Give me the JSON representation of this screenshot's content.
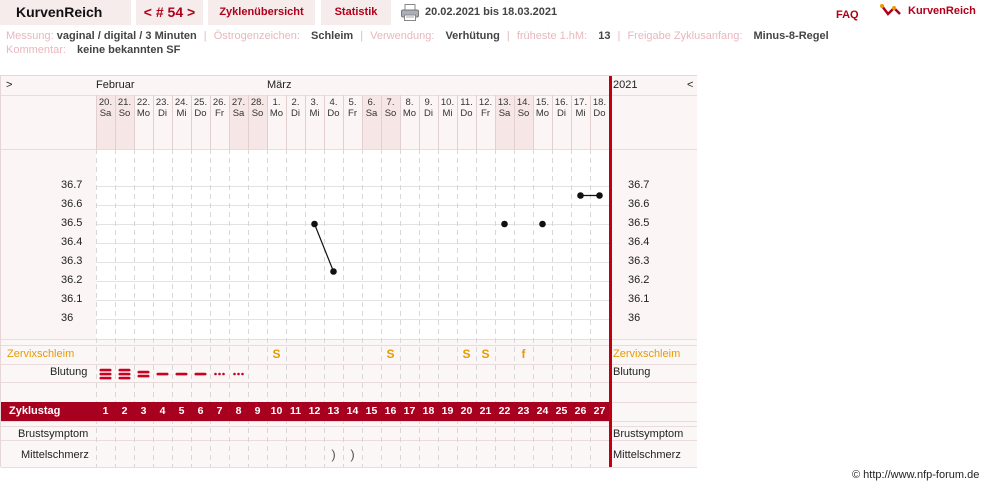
{
  "header": {
    "brand": "KurvenReich",
    "cycle_prev": "<",
    "cycle_label": "# 54",
    "cycle_next": ">",
    "tabs": [
      "Zyklenübersicht",
      "Statistik"
    ],
    "date_range": "20.02.2021 bis 18.03.2021",
    "faq": "FAQ",
    "logo_text": "KurvenReich"
  },
  "meta": {
    "line1": [
      {
        "key": "Messung:",
        "value": "vaginal / digital / 3 Minuten"
      },
      {
        "key": "Östrogenzeichen:",
        "value": "Schleim"
      },
      {
        "key": "Verwendung:",
        "value": "Verhütung"
      },
      {
        "key": "früheste 1.hM:",
        "value": "13"
      },
      {
        "key": "Freigabe Zyklusanfang:",
        "value": "Minus-8-Regel"
      }
    ],
    "line2": {
      "key": "Kommentar:",
      "value": "keine bekannten SF"
    }
  },
  "chart": {
    "nav_left": ">",
    "nav_right": "<",
    "month_feb": "Februar",
    "month_mar": "März",
    "year": "2021",
    "dates": [
      "20.",
      "21.",
      "22.",
      "23.",
      "24.",
      "25.",
      "26.",
      "27.",
      "28.",
      "1.",
      "2.",
      "3.",
      "4.",
      "5.",
      "6.",
      "7.",
      "8.",
      "9.",
      "10.",
      "11.",
      "12.",
      "13.",
      "14.",
      "15.",
      "16.",
      "17.",
      "18."
    ],
    "weekdays": [
      "Sa",
      "So",
      "Mo",
      "Di",
      "Mi",
      "Do",
      "Fr",
      "Sa",
      "So",
      "Mo",
      "Di",
      "Mi",
      "Do",
      "Fr",
      "Sa",
      "So",
      "Mo",
      "Di",
      "Mi",
      "Do",
      "Fr",
      "Sa",
      "So",
      "Mo",
      "Di",
      "Mi",
      "Do"
    ],
    "cycle_days": [
      "1",
      "2",
      "3",
      "4",
      "5",
      "6",
      "7",
      "8",
      "9",
      "10",
      "11",
      "12",
      "13",
      "14",
      "15",
      "16",
      "17",
      "18",
      "19",
      "20",
      "21",
      "22",
      "23",
      "24",
      "25",
      "26",
      "27"
    ],
    "temp_ticks": [
      "36.7",
      "36.6",
      "36.5",
      "36.4",
      "36.3",
      "36.2",
      "36.1",
      "36"
    ],
    "labels": {
      "mucus": "Zervixschleim",
      "bleeding": "Blutung",
      "cycle_day": "Zyklustag",
      "breast": "Brustsymptom",
      "midpain": "Mittelschmerz"
    },
    "copyright": "© http://www.nfp-forum.de"
  },
  "chart_data": {
    "type": "line",
    "title": "",
    "xlabel": "Zyklustag",
    "ylabel": "",
    "ylim": [
      36.0,
      36.7
    ],
    "x": [
      1,
      2,
      3,
      4,
      5,
      6,
      7,
      8,
      9,
      10,
      11,
      12,
      13,
      14,
      15,
      16,
      17,
      18,
      19,
      20,
      21,
      22,
      23,
      24,
      25,
      26,
      27
    ],
    "temperature": [
      {
        "day": 12,
        "value": 36.5
      },
      {
        "day": 13,
        "value": 36.25
      },
      {
        "day": 22,
        "value": 36.5
      },
      {
        "day": 24,
        "value": 36.5
      },
      {
        "day": 26,
        "value": 36.65
      },
      {
        "day": 27,
        "value": 36.65
      }
    ],
    "connected_segments": [
      [
        12,
        13
      ],
      [
        26,
        27
      ]
    ],
    "bleeding": [
      {
        "day": 1,
        "level": "stark"
      },
      {
        "day": 2,
        "level": "stark"
      },
      {
        "day": 3,
        "level": "mittel"
      },
      {
        "day": 4,
        "level": "schwach"
      },
      {
        "day": 5,
        "level": "schwach"
      },
      {
        "day": 6,
        "level": "schwach"
      },
      {
        "day": 7,
        "level": "schmier"
      },
      {
        "day": 8,
        "level": "schmier"
      }
    ],
    "mucus": [
      {
        "day": 10,
        "symbol": "S"
      },
      {
        "day": 16,
        "symbol": "S"
      },
      {
        "day": 20,
        "symbol": "S"
      },
      {
        "day": 21,
        "symbol": "S"
      },
      {
        "day": 23,
        "symbol": "f"
      }
    ],
    "midpain": [
      {
        "day": 13,
        "symbol": ")"
      },
      {
        "day": 14,
        "symbol": ")"
      }
    ],
    "weekend_days": [
      1,
      2,
      8,
      9,
      15,
      16,
      22,
      23
    ],
    "colors": {
      "accent": "#a8001f",
      "weekend": "#f6e6e6",
      "mucus": "#e89b00",
      "bleeding": "#cc0022"
    }
  }
}
